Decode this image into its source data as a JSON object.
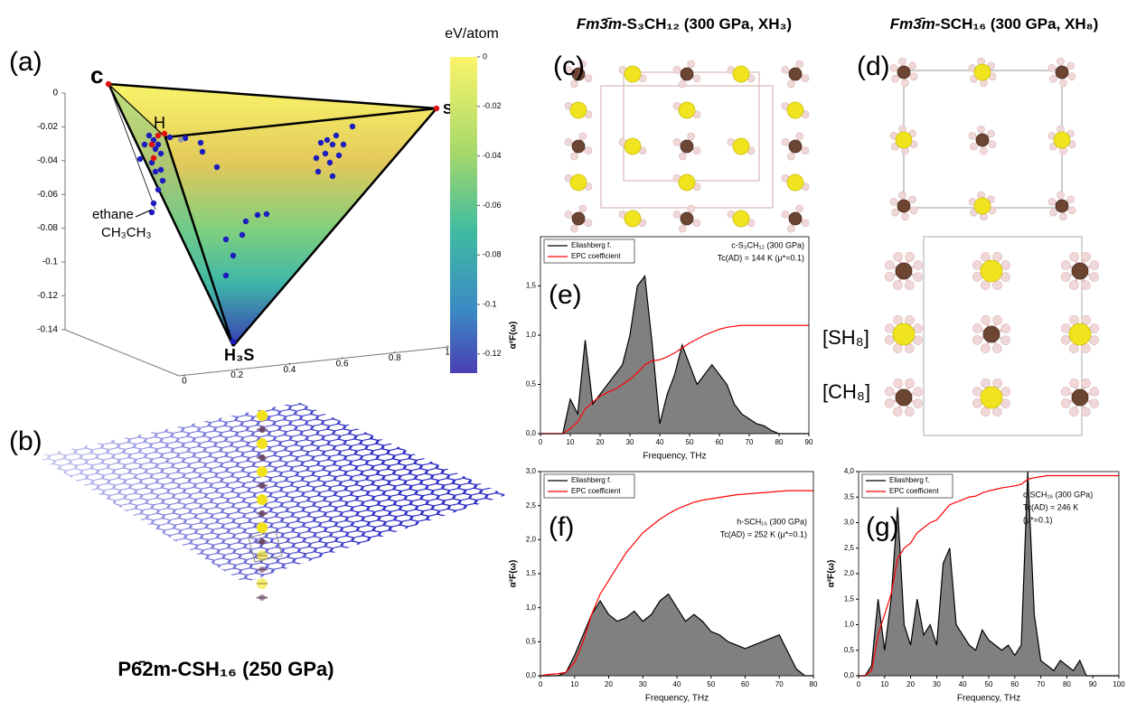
{
  "figure": {
    "panel_labels": [
      "(a)",
      "(b)",
      "(c)",
      "(d)",
      "(e)",
      "(f)",
      "(g)"
    ],
    "titles": [
      {
        "group": "Fm3̄m",
        "formula": "-S₃CH₁₂ (300 GPa, XH₃)"
      },
      {
        "group": "Fm3̄m",
        "formula": "-SCH₁₆ (300 GPa, XH₈)"
      }
    ],
    "caption_b": "P6̄2m-CSH₁₆ (250 GPa)",
    "cluster_labels": [
      "[SH₈]",
      "[CH₈]"
    ],
    "ternary": {
      "vertex_labels": [
        "c",
        "S",
        "H",
        "H₃S"
      ],
      "ethane": [
        "ethane",
        "CH₃CH₃"
      ],
      "zticks": [
        0,
        -0.02,
        -0.04,
        -0.06,
        -0.08,
        -0.1,
        -0.12,
        -0.14
      ],
      "xticks": [
        0,
        0.2,
        0.4,
        0.6,
        0.8,
        1
      ],
      "colorbar_title": "eV/atom",
      "colorbar_ticks": [
        0,
        -0.02,
        -0.04,
        -0.06,
        -0.08,
        -0.1,
        -0.12
      ]
    }
  },
  "chart_data": [
    {
      "type": "line",
      "xlabel": "Frequency, THz",
      "ylabel": "α²F(ω)",
      "legend": "upper left",
      "annotations": [
        "c-S₃CH₁₂ (300 GPa)",
        "Tc(AD) = 144 K (μ*=0.1)"
      ],
      "x": [
        0,
        2.5,
        5,
        7.5,
        10,
        12.5,
        15,
        17.5,
        20,
        22.5,
        25,
        27.5,
        30,
        32.5,
        35,
        37.5,
        40,
        42.5,
        45,
        47.5,
        50,
        52.5,
        55,
        57.5,
        60,
        62.5,
        65,
        67.5,
        70,
        72.5,
        75,
        77.5,
        80,
        82.5,
        85,
        87.5,
        90
      ],
      "series": [
        {
          "name": "Eliashberg f.",
          "color": "#000000",
          "fill": "#808080",
          "values": [
            0,
            0,
            0,
            0,
            0.35,
            0.2,
            0.95,
            0.3,
            0.4,
            0.5,
            0.6,
            0.7,
            1.0,
            1.5,
            1.6,
            0.9,
            0.1,
            0.4,
            0.6,
            0.9,
            0.7,
            0.5,
            0.6,
            0.7,
            0.6,
            0.5,
            0.3,
            0.2,
            0.15,
            0.1,
            0.08,
            0.03,
            0,
            0,
            0,
            0,
            0
          ]
        },
        {
          "name": "EPC coefficient",
          "color": "#ff0000",
          "values": [
            0,
            0,
            0,
            0,
            0.05,
            0.12,
            0.25,
            0.32,
            0.38,
            0.42,
            0.45,
            0.5,
            0.55,
            0.62,
            0.7,
            0.74,
            0.75,
            0.78,
            0.82,
            0.87,
            0.92,
            0.96,
            1.0,
            1.03,
            1.06,
            1.08,
            1.09,
            1.1,
            1.1,
            1.1,
            1.1,
            1.1,
            1.1,
            1.1,
            1.1,
            1.1,
            1.1
          ]
        }
      ],
      "xlim": [
        0,
        90
      ],
      "xticks": [
        0,
        10,
        20,
        30,
        40,
        50,
        60,
        70,
        80,
        90
      ],
      "ylim": [
        0,
        2
      ],
      "yticks": [
        {
          "value": 0,
          "label": "0,0"
        },
        {
          "value": 0.5,
          "label": "0,5"
        },
        {
          "value": 1,
          "label": "1,0"
        },
        {
          "value": 1.5,
          "label": "1,5"
        }
      ]
    },
    {
      "type": "line",
      "xlabel": "Frequency, THz",
      "ylabel": "α²F(ω)",
      "legend": "upper left",
      "annotations": [
        "h-SCH₁₆ (300 GPa)",
        "Tc(AD) = 252 K (μ*=0.1)"
      ],
      "x": [
        0,
        2.5,
        5,
        7.5,
        10,
        12.5,
        15,
        17.5,
        20,
        22.5,
        25,
        27.5,
        30,
        32.5,
        35,
        37.5,
        40,
        42.5,
        45,
        47.5,
        50,
        52.5,
        55,
        57.5,
        60,
        62.5,
        65,
        67.5,
        70,
        72.5,
        75,
        77.5,
        80
      ],
      "series": [
        {
          "name": "Eliashberg f.",
          "color": "#000000",
          "fill": "#808080",
          "values": [
            0,
            0,
            0,
            0.05,
            0.3,
            0.6,
            0.9,
            1.1,
            0.9,
            0.8,
            0.85,
            0.95,
            0.8,
            0.9,
            1.1,
            1.2,
            1.0,
            0.8,
            0.9,
            0.8,
            0.65,
            0.6,
            0.5,
            0.45,
            0.4,
            0.45,
            0.5,
            0.55,
            0.6,
            0.35,
            0.1,
            0,
            0
          ]
        },
        {
          "name": "EPC coefficient",
          "color": "#ff0000",
          "values": [
            0,
            0.02,
            0.03,
            0.05,
            0.2,
            0.5,
            0.9,
            1.2,
            1.4,
            1.6,
            1.8,
            1.95,
            2.1,
            2.2,
            2.3,
            2.38,
            2.45,
            2.5,
            2.55,
            2.58,
            2.6,
            2.62,
            2.64,
            2.66,
            2.67,
            2.68,
            2.69,
            2.7,
            2.71,
            2.72,
            2.72,
            2.72,
            2.72
          ]
        }
      ],
      "xlim": [
        0,
        80
      ],
      "xticks": [
        0,
        10,
        20,
        30,
        40,
        50,
        60,
        70,
        80
      ],
      "ylim": [
        0,
        3
      ],
      "yticks": [
        {
          "value": 0,
          "label": "0,0"
        },
        {
          "value": 0.5,
          "label": "0,5"
        },
        {
          "value": 1,
          "label": "1,0"
        },
        {
          "value": 1.5,
          "label": "1,5"
        },
        {
          "value": 2,
          "label": "2,0"
        },
        {
          "value": 2.5,
          "label": "2,5"
        },
        {
          "value": 3,
          "label": "3,0"
        }
      ]
    },
    {
      "type": "line",
      "xlabel": "Frequency, THz",
      "ylabel": "α²F(ω)",
      "legend": "upper left",
      "annotations": [
        "c-SCH₁₆ (300 GPa)",
        "Tc(AD) = 246 K",
        "(μ*=0.1)"
      ],
      "x": [
        0,
        2.5,
        5,
        7.5,
        10,
        12.5,
        15,
        17.5,
        20,
        22.5,
        25,
        27.5,
        30,
        32.5,
        35,
        37.5,
        40,
        42.5,
        45,
        47.5,
        50,
        52.5,
        55,
        57.5,
        60,
        62.5,
        65,
        67.5,
        70,
        72.5,
        75,
        77.5,
        80,
        82.5,
        85,
        87.5,
        90,
        92.5,
        95,
        97.5,
        100
      ],
      "series": [
        {
          "name": "Eliashberg f.",
          "color": "#000000",
          "fill": "#808080",
          "values": [
            0,
            0,
            0.2,
            1.5,
            0.5,
            1.5,
            3.3,
            1.0,
            0.6,
            1.5,
            0.8,
            1.0,
            0.6,
            2.2,
            2.5,
            1.0,
            0.8,
            0.6,
            0.5,
            0.9,
            0.7,
            0.6,
            0.5,
            0.6,
            0.4,
            0.6,
            4.0,
            1.2,
            0.3,
            0.2,
            0.1,
            0.3,
            0.2,
            0.1,
            0.3,
            0,
            0,
            0,
            0,
            0,
            0
          ]
        },
        {
          "name": "EPC coefficient",
          "color": "#ff0000",
          "values": [
            0,
            0,
            0.1,
            0.8,
            1.2,
            1.6,
            2.3,
            2.5,
            2.6,
            2.8,
            2.9,
            3.0,
            3.05,
            3.2,
            3.35,
            3.4,
            3.45,
            3.5,
            3.52,
            3.58,
            3.62,
            3.65,
            3.68,
            3.7,
            3.72,
            3.75,
            3.85,
            3.88,
            3.9,
            3.92,
            3.92,
            3.92,
            3.92,
            3.92,
            3.92,
            3.92,
            3.92,
            3.92,
            3.92,
            3.92,
            3.92
          ]
        }
      ],
      "xlim": [
        0,
        100
      ],
      "xticks": [
        0,
        10,
        20,
        30,
        40,
        50,
        60,
        70,
        80,
        90,
        100
      ],
      "ylim": [
        0,
        4
      ],
      "yticks": [
        {
          "value": 0,
          "label": "0,0"
        },
        {
          "value": 0.5,
          "label": "0,5"
        },
        {
          "value": 1,
          "label": "1,0"
        },
        {
          "value": 1.5,
          "label": "1,5"
        },
        {
          "value": 2,
          "label": "2,0"
        },
        {
          "value": 2.5,
          "label": "2,5"
        },
        {
          "value": 3,
          "label": "3,0"
        },
        {
          "value": 3.5,
          "label": "3,5"
        },
        {
          "value": 4,
          "label": "4,0"
        }
      ]
    }
  ]
}
